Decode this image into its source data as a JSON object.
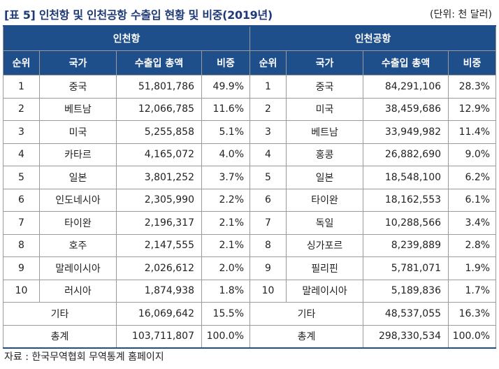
{
  "caption": "[표 5] 인천항 및 인천공항 수출입 현황 및 비중(2019년)",
  "unit": "(단위: 천 달러)",
  "groups": [
    "인천항",
    "인천공항"
  ],
  "columns": [
    "순위",
    "국가",
    "수출입 총액",
    "비중"
  ],
  "rows": [
    {
      "rank": "1",
      "port_country": "중국",
      "port_total": "51,801,786",
      "port_share": "49.9%",
      "air_rank": "1",
      "air_country": "중국",
      "air_total": "84,291,106",
      "air_share": "28.3%"
    },
    {
      "rank": "2",
      "port_country": "베트남",
      "port_total": "12,066,785",
      "port_share": "11.6%",
      "air_rank": "2",
      "air_country": "미국",
      "air_total": "38,459,686",
      "air_share": "12.9%"
    },
    {
      "rank": "3",
      "port_country": "미국",
      "port_total": "5,255,858",
      "port_share": "5.1%",
      "air_rank": "3",
      "air_country": "베트남",
      "air_total": "33,949,982",
      "air_share": "11.4%"
    },
    {
      "rank": "4",
      "port_country": "카타르",
      "port_total": "4,165,072",
      "port_share": "4.0%",
      "air_rank": "4",
      "air_country": "홍콩",
      "air_total": "26,882,690",
      "air_share": "9.0%"
    },
    {
      "rank": "5",
      "port_country": "일본",
      "port_total": "3,801,252",
      "port_share": "3.7%",
      "air_rank": "5",
      "air_country": "일본",
      "air_total": "18,548,100",
      "air_share": "6.2%"
    },
    {
      "rank": "6",
      "port_country": "인도네시아",
      "port_total": "2,305,990",
      "port_share": "2.2%",
      "air_rank": "6",
      "air_country": "타이완",
      "air_total": "18,162,553",
      "air_share": "6.1%"
    },
    {
      "rank": "7",
      "port_country": "타이완",
      "port_total": "2,196,317",
      "port_share": "2.1%",
      "air_rank": "7",
      "air_country": "독일",
      "air_total": "10,288,566",
      "air_share": "3.4%"
    },
    {
      "rank": "8",
      "port_country": "호주",
      "port_total": "2,147,555",
      "port_share": "2.1%",
      "air_rank": "8",
      "air_country": "싱가포르",
      "air_total": "8,239,889",
      "air_share": "2.8%"
    },
    {
      "rank": "9",
      "port_country": "말레이시아",
      "port_total": "2,026,612",
      "port_share": "2.0%",
      "air_rank": "9",
      "air_country": "필리핀",
      "air_total": "5,781,071",
      "air_share": "1.9%"
    },
    {
      "rank": "10",
      "port_country": "러시아",
      "port_total": "1,874,938",
      "port_share": "1.8%",
      "air_rank": "10",
      "air_country": "말레이시아",
      "air_total": "5,189,836",
      "air_share": "1.7%"
    }
  ],
  "other": {
    "label": "기타",
    "port_total": "16,069,642",
    "port_share": "15.5%",
    "air_total": "48,537,055",
    "air_share": "16.3%"
  },
  "total": {
    "label": "총계",
    "port_total": "103,711,807",
    "port_share": "100.0%",
    "air_total": "298,330,534",
    "air_share": "100.0%"
  },
  "source": "자료 : 한국무역협회 무역통계 홈페이지",
  "colors": {
    "header_bg": "#1f4f8b",
    "caption": "#1f3a78"
  }
}
